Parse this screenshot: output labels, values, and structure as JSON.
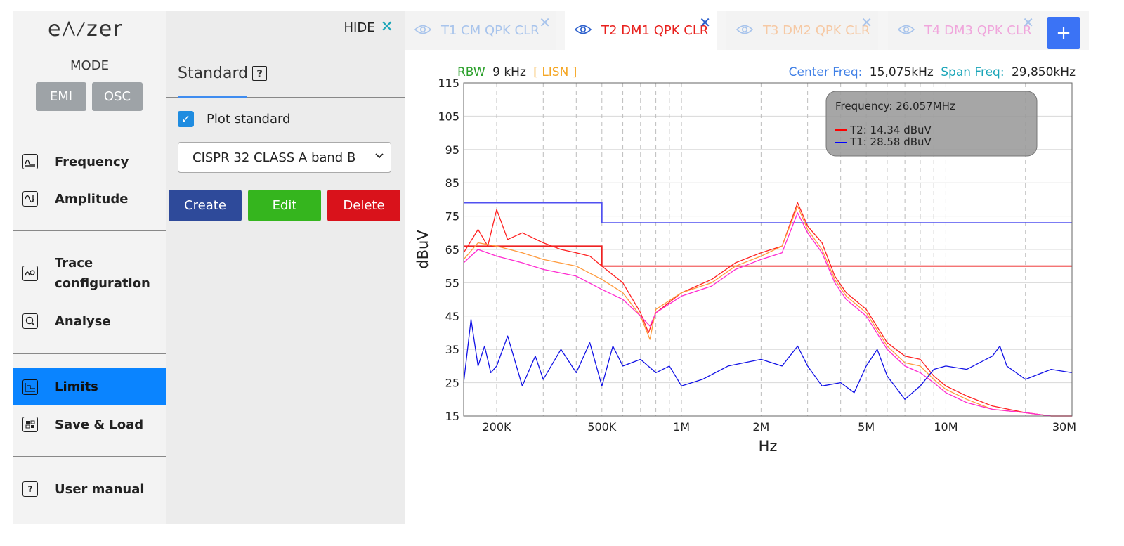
{
  "app": {
    "logo": "eΛ╱zer",
    "mode_label": "MODE",
    "mode_buttons": [
      "EMI",
      "OSC"
    ]
  },
  "sidebar": {
    "items": [
      {
        "label": "Frequency",
        "icon": "frequency-icon"
      },
      {
        "label": "Amplitude",
        "icon": "amplitude-icon"
      },
      {
        "label": "Trace",
        "label2": "configuration",
        "icon": "trace-config-icon"
      },
      {
        "label": "Analyse",
        "icon": "analyse-icon"
      },
      {
        "label": "Limits",
        "icon": "limits-icon",
        "active": true
      },
      {
        "label": "Save & Load",
        "icon": "save-load-icon"
      },
      {
        "label": "User manual",
        "icon": "help-icon"
      }
    ],
    "active_color": "#0a84ff"
  },
  "panel": {
    "hide_label": "HIDE",
    "title": "Standard",
    "help_glyph": "?",
    "plot_standard_label": "Plot standard",
    "plot_standard_checked": true,
    "standard_select_value": "CISPR 32 CLASS A band B",
    "buttons": {
      "create": "Create",
      "edit": "Edit",
      "delete": "Delete"
    },
    "button_colors": {
      "create": "#2e4a9a",
      "edit": "#35b51e",
      "delete": "#d9121b"
    }
  },
  "tabs": [
    {
      "label": "T1 CM QPK CLR",
      "color": "#a8c4ec",
      "active": false
    },
    {
      "label": "T2 DM1 QPK CLR",
      "color": "#e8201d",
      "active": true
    },
    {
      "label": "T3 DM2 QPK CLR",
      "color": "#f6c9a4",
      "active": false
    },
    {
      "label": "T4 DM3 QPK CLR",
      "color": "#f0a6dc",
      "active": false
    }
  ],
  "add_tab_label": "+",
  "chart_data": {
    "type": "line",
    "header": {
      "rbw_label": "RBW",
      "rbw_value": "9 kHz",
      "lisn": "[ LISN ]",
      "center_label": "Center Freq:",
      "center_value": "15,075kHz",
      "span_label": "Span Freq:",
      "span_value": "29,850kHz"
    },
    "xlabel": "Hz",
    "ylabel": "dBuV",
    "x_scale": "log",
    "xlim_hz": [
      150000,
      30000000
    ],
    "ylim": [
      15,
      115
    ],
    "yticks": [
      15,
      25,
      35,
      45,
      55,
      65,
      75,
      85,
      95,
      105,
      115
    ],
    "xtick_labels": [
      {
        "value": 200000,
        "label": "200K"
      },
      {
        "value": 500000,
        "label": "500K"
      },
      {
        "value": 1000000,
        "label": "1M"
      },
      {
        "value": 2000000,
        "label": "2M"
      },
      {
        "value": 5000000,
        "label": "5M"
      },
      {
        "value": 10000000,
        "label": "10M"
      },
      {
        "value": 30000000,
        "label": "30M"
      }
    ],
    "grid": true,
    "tooltip": {
      "title": "Frequency: 26.057MHz",
      "rows": [
        {
          "label": "T2: 14.34 dBuV",
          "color": "#ff0000"
        },
        {
          "label": "T1: 28.58 dBuV",
          "color": "#0000ff"
        }
      ]
    },
    "limits": [
      {
        "color": "#5050f0",
        "points": [
          [
            150000,
            79
          ],
          [
            500000,
            79
          ],
          [
            500000,
            73
          ],
          [
            30000000,
            73
          ]
        ]
      },
      {
        "color": "#ee2222",
        "points": [
          [
            150000,
            66
          ],
          [
            500000,
            66
          ],
          [
            500000,
            60
          ],
          [
            30000000,
            60
          ]
        ]
      }
    ],
    "series": [
      {
        "color": "#ff2020",
        "x": [
          150000,
          170000,
          185000,
          200000,
          220000,
          250000,
          300000,
          350000,
          400000,
          450000,
          500000,
          600000,
          700000,
          750000,
          800000,
          1000000,
          1300000,
          1600000,
          2000000,
          2400000,
          2750000,
          3000000,
          3400000,
          3800000,
          4200000,
          5000000,
          6000000,
          7000000,
          8000000,
          9000000,
          10000000,
          12000000,
          15000000,
          20000000,
          25000000,
          30000000
        ],
        "y": [
          64,
          71,
          66,
          77,
          68,
          70,
          67,
          65,
          64,
          63,
          60,
          55,
          46,
          40,
          46,
          52,
          56,
          61,
          64,
          66,
          79,
          72,
          67,
          57,
          52,
          47,
          37,
          33,
          32,
          27,
          24,
          21,
          18,
          16,
          15,
          15
        ]
      },
      {
        "color": "#ff9a3c",
        "x": [
          150000,
          170000,
          200000,
          250000,
          300000,
          400000,
          500000,
          600000,
          700000,
          760000,
          800000,
          1000000,
          1300000,
          1600000,
          2000000,
          2400000,
          2750000,
          3000000,
          3400000,
          3800000,
          4200000,
          5000000,
          6000000,
          7000000,
          8000000,
          9000000,
          10000000,
          12000000,
          15000000,
          20000000,
          25000000,
          30000000
        ],
        "y": [
          62,
          67,
          66,
          64,
          62,
          60,
          56,
          52,
          45,
          38,
          47,
          52,
          55,
          60,
          63,
          66,
          78,
          71,
          65,
          56,
          51,
          46,
          36,
          31,
          30,
          26,
          23,
          20,
          17,
          16,
          15,
          15
        ]
      },
      {
        "color": "#ff2ad0",
        "x": [
          150000,
          170000,
          200000,
          250000,
          300000,
          400000,
          500000,
          600000,
          700000,
          760000,
          800000,
          1000000,
          1300000,
          1600000,
          2000000,
          2400000,
          2750000,
          3000000,
          3400000,
          3800000,
          4200000,
          5000000,
          6000000,
          7000000,
          8000000,
          9000000,
          10000000,
          12000000,
          15000000,
          20000000,
          25000000,
          30000000
        ],
        "y": [
          61,
          65,
          63,
          61,
          59,
          57,
          53,
          50,
          45,
          42,
          46,
          51,
          54,
          59,
          62,
          64,
          76,
          70,
          64,
          55,
          50,
          45,
          35,
          30,
          28,
          25,
          22,
          19,
          17,
          16,
          15,
          15
        ]
      },
      {
        "color": "#1212e6",
        "x": [
          150000,
          160000,
          170000,
          180000,
          190000,
          200000,
          220000,
          250000,
          280000,
          300000,
          350000,
          400000,
          450000,
          500000,
          550000,
          600000,
          700000,
          800000,
          900000,
          1000000,
          1200000,
          1500000,
          2000000,
          2400000,
          2750000,
          3000000,
          3400000,
          4000000,
          4500000,
          5000000,
          5500000,
          6000000,
          7000000,
          8000000,
          9000000,
          10000000,
          12000000,
          15000000,
          16000000,
          17000000,
          20000000,
          25000000,
          30000000
        ],
        "y": [
          25,
          44,
          30,
          36,
          28,
          30,
          39,
          24,
          33,
          26,
          35,
          28,
          37,
          24,
          36,
          30,
          32,
          28,
          30,
          24,
          26,
          30,
          32,
          30,
          36,
          30,
          24,
          25,
          22,
          30,
          35,
          27,
          20,
          24,
          29,
          30,
          29,
          33,
          36,
          30,
          26,
          29,
          28
        ]
      }
    ]
  }
}
